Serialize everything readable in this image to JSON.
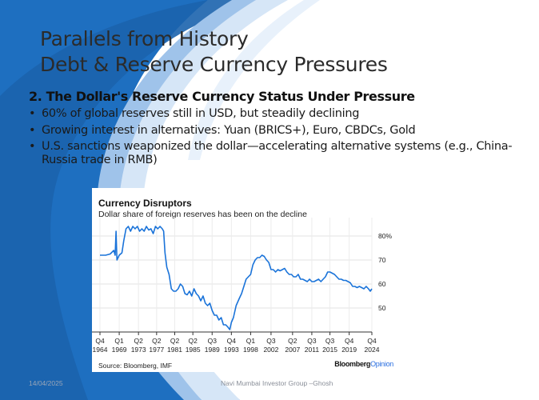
{
  "slide": {
    "title_line1": "Parallels from History",
    "title_line2": "Debt & Reserve Currency Pressures",
    "subhead": "2. The Dollar's Reserve Currency Status Under Pressure",
    "bullets": [
      "60% of global reserves still in USD, but steadily declining",
      "Growing interest in alternatives: Yuan (BRICS+), Euro, CBDCs, Gold",
      "U.S. sanctions weaponized the dollar—accelerating alternative systems (e.g., China-Russia trade in RMB)"
    ],
    "bullet_glyph": "•",
    "footer_date": "14/04/2025",
    "footer_text": "Navi Mumbai Investor Group –Ghosh",
    "colors": {
      "background_blue": "#1e6fc0",
      "light_blue": "#cfe1f5",
      "line_blue": "#1a73d9"
    }
  },
  "chart_data": {
    "type": "line",
    "title": "Currency Disruptors",
    "subtitle": "Dollar share of foreign reserves has been on the decline",
    "source": "Source: Bloomberg, IMF",
    "logo": {
      "brand": "Bloomberg",
      "suffix": "Opinion"
    },
    "ylim": [
      40,
      85
    ],
    "yticks": [
      {
        "value": 80,
        "label": "80%"
      },
      {
        "value": 70,
        "label": "70"
      },
      {
        "value": 60,
        "label": "60"
      },
      {
        "value": 50,
        "label": "50"
      }
    ],
    "xlim": [
      1964.75,
      2024.75
    ],
    "xticks": [
      {
        "value": 1964.75,
        "q": "Q4",
        "year": "1964"
      },
      {
        "value": 1969.0,
        "q": "Q1",
        "year": "1969"
      },
      {
        "value": 1973.25,
        "q": "Q2",
        "year": "1973"
      },
      {
        "value": 1977.25,
        "q": "Q2",
        "year": "1977"
      },
      {
        "value": 1981.25,
        "q": "Q2",
        "year": "1981"
      },
      {
        "value": 1985.25,
        "q": "Q2",
        "year": "1985"
      },
      {
        "value": 1989.5,
        "q": "Q3",
        "year": "1989"
      },
      {
        "value": 1993.75,
        "q": "Q4",
        "year": "1993"
      },
      {
        "value": 1998.0,
        "q": "Q1",
        "year": "1998"
      },
      {
        "value": 2002.5,
        "q": "Q3",
        "year": "2002"
      },
      {
        "value": 2007.25,
        "q": "Q2",
        "year": "2007"
      },
      {
        "value": 2011.5,
        "q": "Q3",
        "year": "2011"
      },
      {
        "value": 2015.5,
        "q": "Q3",
        "year": "2015"
      },
      {
        "value": 2019.75,
        "q": "Q4",
        "year": "2019"
      },
      {
        "value": 2024.75,
        "q": "Q4",
        "year": "2024"
      }
    ],
    "grid": true,
    "series": [
      {
        "color": "#1a73d9",
        "points": [
          [
            1964.75,
            72
          ],
          [
            1966.0,
            72
          ],
          [
            1967.0,
            72.5
          ],
          [
            1967.8,
            74
          ],
          [
            1968.1,
            72
          ],
          [
            1968.3,
            82
          ],
          [
            1968.5,
            70
          ],
          [
            1969.0,
            72
          ],
          [
            1969.6,
            73
          ],
          [
            1970.0,
            78
          ],
          [
            1970.5,
            83
          ],
          [
            1971.0,
            84
          ],
          [
            1971.5,
            82
          ],
          [
            1972.0,
            84
          ],
          [
            1972.5,
            83
          ],
          [
            1973.0,
            84
          ],
          [
            1973.5,
            82
          ],
          [
            1974.0,
            83
          ],
          [
            1974.5,
            82
          ],
          [
            1975.0,
            84
          ],
          [
            1975.5,
            82.5
          ],
          [
            1976.0,
            83
          ],
          [
            1976.5,
            81
          ],
          [
            1977.0,
            84
          ],
          [
            1977.5,
            83
          ],
          [
            1978.0,
            84
          ],
          [
            1978.5,
            83
          ],
          [
            1978.8,
            82
          ],
          [
            1979.1,
            73
          ],
          [
            1979.5,
            67
          ],
          [
            1980.0,
            64
          ],
          [
            1980.5,
            58
          ],
          [
            1981.0,
            57
          ],
          [
            1981.5,
            57
          ],
          [
            1982.0,
            58
          ],
          [
            1982.5,
            60
          ],
          [
            1983.0,
            59
          ],
          [
            1983.5,
            56
          ],
          [
            1984.0,
            55.5
          ],
          [
            1984.5,
            57
          ],
          [
            1985.0,
            55
          ],
          [
            1985.5,
            58
          ],
          [
            1986.0,
            56
          ],
          [
            1986.5,
            55
          ],
          [
            1987.0,
            53
          ],
          [
            1987.5,
            55
          ],
          [
            1988.0,
            52
          ],
          [
            1988.5,
            51
          ],
          [
            1989.0,
            52
          ],
          [
            1989.5,
            49
          ],
          [
            1990.0,
            47
          ],
          [
            1990.5,
            47
          ],
          [
            1991.0,
            45
          ],
          [
            1991.5,
            46
          ],
          [
            1992.0,
            43
          ],
          [
            1992.5,
            43
          ],
          [
            1993.0,
            42
          ],
          [
            1993.4,
            41
          ],
          [
            1993.75,
            44
          ],
          [
            1994.2,
            46
          ],
          [
            1994.8,
            51
          ],
          [
            1995.5,
            54
          ],
          [
            1996.0,
            56
          ],
          [
            1996.5,
            59
          ],
          [
            1997.0,
            62
          ],
          [
            1997.5,
            63
          ],
          [
            1998.0,
            64
          ],
          [
            1998.5,
            68
          ],
          [
            1999.0,
            70
          ],
          [
            1999.5,
            71
          ],
          [
            2000.0,
            71
          ],
          [
            2000.5,
            72
          ],
          [
            2001.0,
            71.5
          ],
          [
            2001.5,
            70
          ],
          [
            2002.0,
            69
          ],
          [
            2002.5,
            66
          ],
          [
            2003.0,
            66
          ],
          [
            2003.5,
            65
          ],
          [
            2004.0,
            66
          ],
          [
            2004.5,
            65.5
          ],
          [
            2005.0,
            66
          ],
          [
            2005.5,
            66.5
          ],
          [
            2006.0,
            65
          ],
          [
            2006.5,
            64
          ],
          [
            2007.0,
            64
          ],
          [
            2007.5,
            63
          ],
          [
            2008.0,
            63
          ],
          [
            2008.5,
            64
          ],
          [
            2009.0,
            62
          ],
          [
            2009.5,
            62
          ],
          [
            2010.0,
            61.5
          ],
          [
            2010.5,
            61
          ],
          [
            2011.0,
            62
          ],
          [
            2011.5,
            61
          ],
          [
            2012.0,
            61
          ],
          [
            2012.5,
            61.5
          ],
          [
            2013.0,
            62
          ],
          [
            2013.5,
            61
          ],
          [
            2014.0,
            62
          ],
          [
            2014.5,
            63
          ],
          [
            2015.0,
            65
          ],
          [
            2015.5,
            65
          ],
          [
            2016.0,
            64.5
          ],
          [
            2016.5,
            64
          ],
          [
            2017.0,
            63
          ],
          [
            2017.5,
            62
          ],
          [
            2018.0,
            62
          ],
          [
            2018.5,
            61.5
          ],
          [
            2019.0,
            61.5
          ],
          [
            2019.5,
            61
          ],
          [
            2020.0,
            60.5
          ],
          [
            2020.5,
            59
          ],
          [
            2021.0,
            59
          ],
          [
            2021.5,
            58.5
          ],
          [
            2022.0,
            59
          ],
          [
            2022.5,
            58.5
          ],
          [
            2023.0,
            58
          ],
          [
            2023.5,
            59
          ],
          [
            2024.0,
            58
          ],
          [
            2024.4,
            57
          ],
          [
            2024.75,
            58
          ]
        ]
      }
    ]
  }
}
